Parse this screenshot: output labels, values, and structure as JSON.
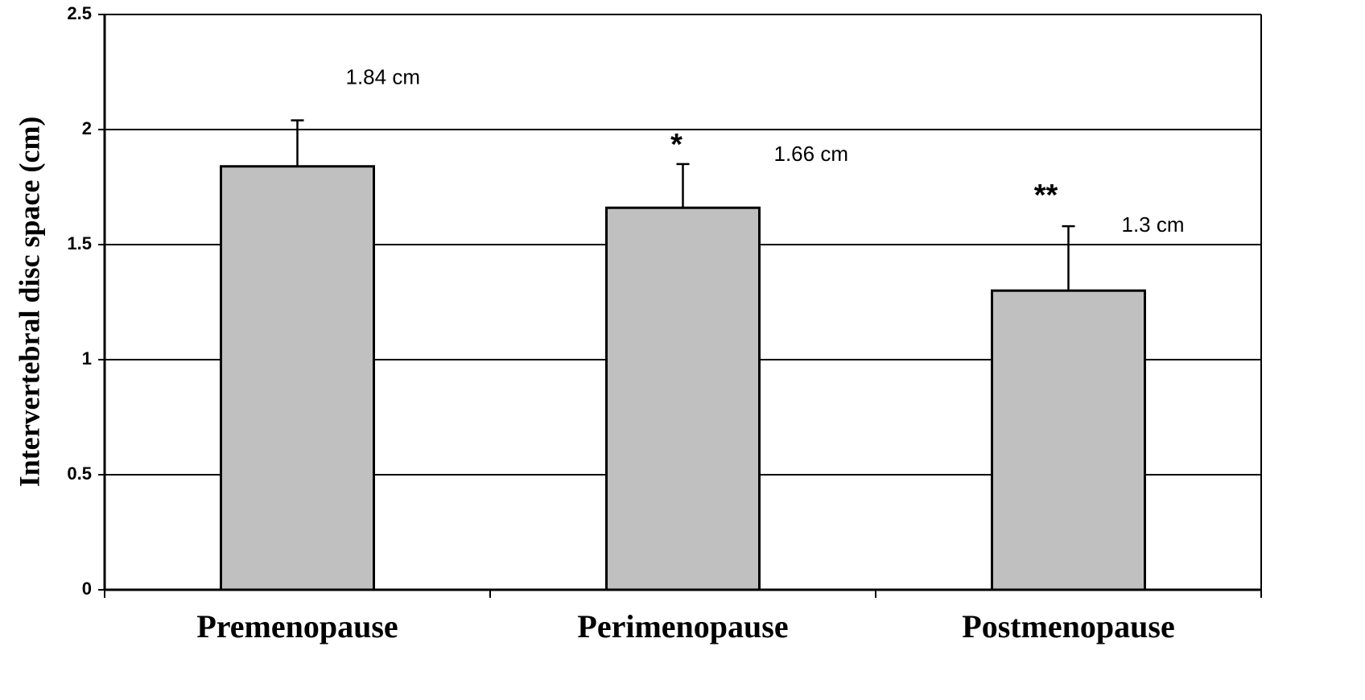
{
  "chart_data": {
    "type": "bar",
    "y_label": "Intervertebral disc space (cm)",
    "categories": [
      "Premenopause",
      "Perimenopause",
      "Postmenopause"
    ],
    "values": [
      1.84,
      1.66,
      1.3
    ],
    "value_labels": [
      "1.84 cm",
      "1.66 cm",
      "1.3 cm"
    ],
    "errors": [
      0.2,
      0.19,
      0.28
    ],
    "significance": [
      null,
      "*",
      "**"
    ],
    "color": "#c0c0c0",
    "ylim": [
      0,
      2.5
    ],
    "yticks": [
      0,
      0.5,
      1,
      1.5,
      2,
      2.5
    ],
    "grid": true
  }
}
